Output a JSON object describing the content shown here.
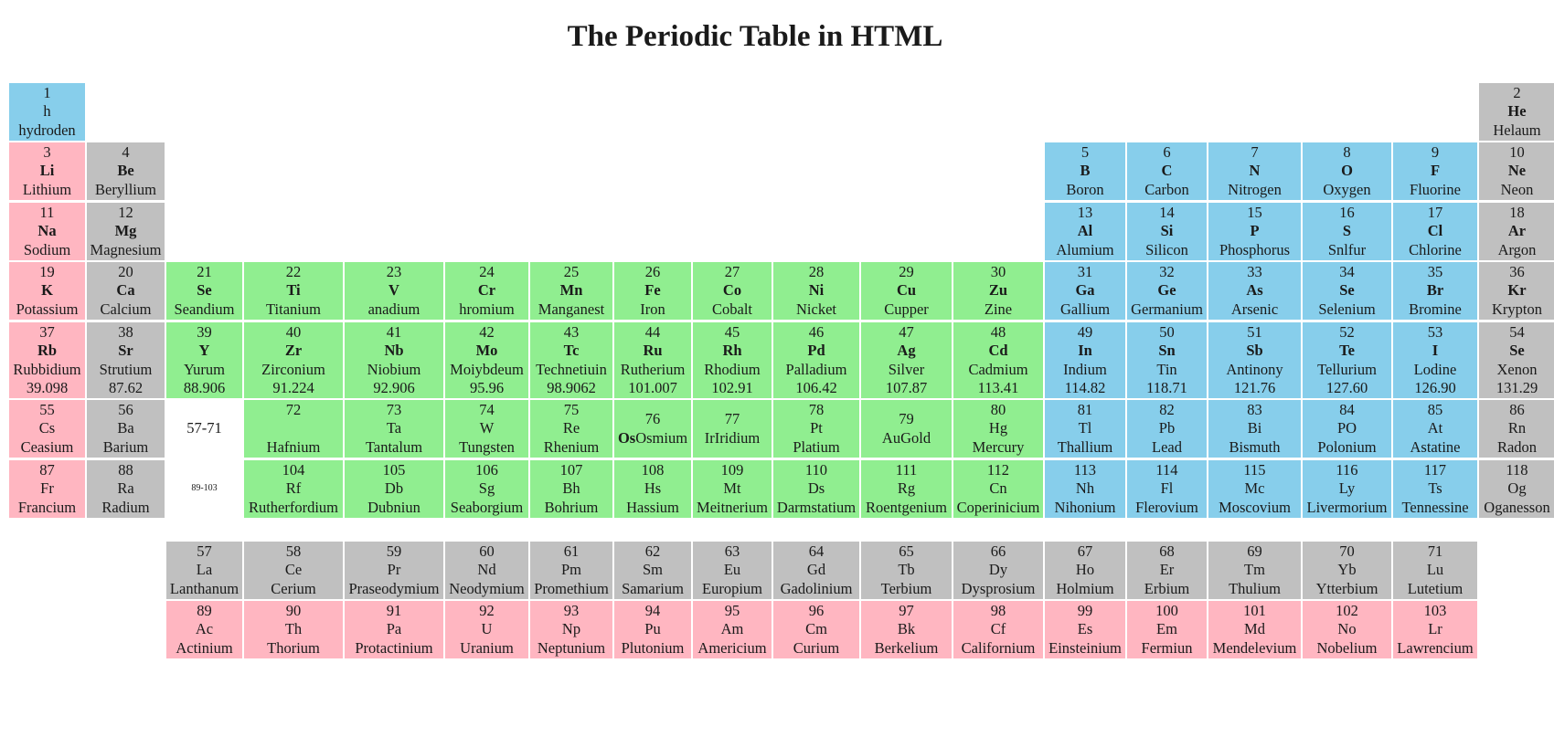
{
  "page": {
    "title": "The Periodic Table in HTML"
  },
  "colors": {
    "blue": "#87ceeb",
    "pink": "#ffb6c1",
    "gray": "#c0c0c0",
    "green": "#90ee90"
  },
  "main_table": {
    "rows": [
      [
        {
          "col": 1,
          "n": "1",
          "s": "h",
          "name": "hydroden",
          "color": "blue"
        },
        {
          "col": 18,
          "n": "2",
          "s": "He",
          "name": "Helaum",
          "color": "gray",
          "bold": true
        }
      ],
      [
        {
          "col": 1,
          "n": "3",
          "s": "Li",
          "name": "Lithium",
          "color": "pink",
          "bold": true
        },
        {
          "col": 2,
          "n": "4",
          "s": "Be",
          "name": "Beryllium",
          "color": "gray",
          "bold": true
        },
        {
          "col": 13,
          "n": "5",
          "s": "B",
          "name": "Boron",
          "color": "blue",
          "bold": true
        },
        {
          "col": 14,
          "n": "6",
          "s": "C",
          "name": "Carbon",
          "color": "blue",
          "bold": true
        },
        {
          "col": 15,
          "n": "7",
          "s": "N",
          "name": "Nitrogen",
          "color": "blue",
          "bold": true
        },
        {
          "col": 16,
          "n": "8",
          "s": "O",
          "name": "Oxygen",
          "color": "blue",
          "bold": true
        },
        {
          "col": 17,
          "n": "9",
          "s": "F",
          "name": "Fluorine",
          "color": "blue",
          "bold": true
        },
        {
          "col": 18,
          "n": "10",
          "s": "Ne",
          "name": "Neon",
          "color": "gray",
          "bold": true
        }
      ],
      [
        {
          "col": 1,
          "n": "11",
          "s": "Na",
          "name": "Sodium",
          "color": "pink",
          "bold": true
        },
        {
          "col": 2,
          "n": "12",
          "s": "Mg",
          "name": "Magnesium",
          "color": "gray",
          "bold": true
        },
        {
          "col": 13,
          "n": "13",
          "s": "Al",
          "name": "Alumium",
          "color": "blue",
          "bold": true
        },
        {
          "col": 14,
          "n": "14",
          "s": "Si",
          "name": "Silicon",
          "color": "blue",
          "bold": true
        },
        {
          "col": 15,
          "n": "15",
          "s": "P",
          "name": "Phosphorus",
          "color": "blue",
          "bold": true
        },
        {
          "col": 16,
          "n": "16",
          "s": "S",
          "name": "Snlfur",
          "color": "blue",
          "bold": true
        },
        {
          "col": 17,
          "n": "17",
          "s": "Cl",
          "name": "Chlorine",
          "color": "blue",
          "bold": true
        },
        {
          "col": 18,
          "n": "18",
          "s": "Ar",
          "name": "Argon",
          "color": "gray",
          "bold": true
        }
      ],
      [
        {
          "col": 1,
          "n": "19",
          "s": "K",
          "name": "Potassium",
          "color": "pink",
          "bold": true
        },
        {
          "col": 2,
          "n": "20",
          "s": "Ca",
          "name": "Calcium",
          "color": "gray",
          "bold": true
        },
        {
          "col": 3,
          "n": "21",
          "s": "Se",
          "name": "Seandium",
          "color": "green",
          "bold": true
        },
        {
          "col": 4,
          "n": "22",
          "s": "Ti",
          "name": "Titanium",
          "color": "green",
          "bold": true
        },
        {
          "col": 5,
          "n": "23",
          "s": "V",
          "name": "anadium",
          "color": "green",
          "bold": true
        },
        {
          "col": 6,
          "n": "24",
          "s": "Cr",
          "name": "hromium",
          "color": "green",
          "bold": true
        },
        {
          "col": 7,
          "n": "25",
          "s": "Mn",
          "name": "Manganest",
          "color": "green",
          "bold": true
        },
        {
          "col": 8,
          "n": "26",
          "s": "Fe",
          "name": "Iron",
          "color": "green",
          "bold": true
        },
        {
          "col": 9,
          "n": "27",
          "s": "Co",
          "name": "Cobalt",
          "color": "green",
          "bold": true
        },
        {
          "col": 10,
          "n": "28",
          "s": "Ni",
          "name": "Nicket",
          "color": "green",
          "bold": true
        },
        {
          "col": 11,
          "n": "29",
          "s": "Cu",
          "name": "Cupper",
          "color": "green",
          "bold": true
        },
        {
          "col": 12,
          "n": "30",
          "s": "Zu",
          "name": "Zine",
          "color": "green",
          "bold": true
        },
        {
          "col": 13,
          "n": "31",
          "s": "Ga",
          "name": "Gallium",
          "color": "blue",
          "bold": true
        },
        {
          "col": 14,
          "n": "32",
          "s": "Ge",
          "name": "Germanium",
          "color": "blue",
          "bold": true
        },
        {
          "col": 15,
          "n": "33",
          "s": "As",
          "name": "Arsenic",
          "color": "blue",
          "bold": true
        },
        {
          "col": 16,
          "n": "34",
          "s": "Se",
          "name": "Selenium",
          "color": "blue",
          "bold": true
        },
        {
          "col": 17,
          "n": "35",
          "s": "Br",
          "name": "Bromine",
          "color": "blue",
          "bold": true
        },
        {
          "col": 18,
          "n": "36",
          "s": "Kr",
          "name": "Krypton",
          "color": "gray",
          "bold": true
        }
      ],
      [
        {
          "col": 1,
          "n": "37",
          "s": "Rb",
          "name": "Rubbidium",
          "mass": "39.098",
          "color": "pink",
          "bold": true
        },
        {
          "col": 2,
          "n": "38",
          "s": "Sr",
          "name": "Strutium",
          "mass": "87.62",
          "color": "gray",
          "bold": true
        },
        {
          "col": 3,
          "n": "39",
          "s": "Y",
          "name": "Yurum",
          "mass": "88.906",
          "color": "green",
          "bold": true
        },
        {
          "col": 4,
          "n": "40",
          "s": "Zr",
          "name": "Zirconium",
          "mass": "91.224",
          "color": "green",
          "bold": true
        },
        {
          "col": 5,
          "n": "41",
          "s": "Nb",
          "name": "Niobium",
          "mass": "92.906",
          "color": "green",
          "bold": true
        },
        {
          "col": 6,
          "n": "42",
          "s": "Mo",
          "name": "Moiybdeum",
          "mass": "95.96",
          "color": "green",
          "bold": true
        },
        {
          "col": 7,
          "n": "43",
          "s": "Tc",
          "name": "Technetiuin",
          "mass": "98.9062",
          "color": "green",
          "bold": true
        },
        {
          "col": 8,
          "n": "44",
          "s": "Ru",
          "name": "Rutherium",
          "mass": "101.007",
          "color": "green",
          "bold": true
        },
        {
          "col": 9,
          "n": "45",
          "s": "Rh",
          "name": "Rhodium",
          "mass": "102.91",
          "color": "green",
          "bold": true
        },
        {
          "col": 10,
          "n": "46",
          "s": "Pd",
          "name": "Palladium",
          "mass": "106.42",
          "color": "green",
          "bold": true
        },
        {
          "col": 11,
          "n": "47",
          "s": "Ag",
          "name": "Silver",
          "mass": "107.87",
          "color": "green",
          "bold": true
        },
        {
          "col": 12,
          "n": "48",
          "s": "Cd",
          "name": "Cadmium",
          "mass": "113.41",
          "color": "green",
          "bold": true
        },
        {
          "col": 13,
          "n": "49",
          "s": "In",
          "name": "Indium",
          "mass": "114.82",
          "color": "blue",
          "bold": true
        },
        {
          "col": 14,
          "n": "50",
          "s": "Sn",
          "name": "Tin",
          "mass": "118.71",
          "color": "blue",
          "bold": true
        },
        {
          "col": 15,
          "n": "51",
          "s": "Sb",
          "name": "Antinony",
          "mass": "121.76",
          "color": "blue",
          "bold": true
        },
        {
          "col": 16,
          "n": "52",
          "s": "Te",
          "name": "Tellurium",
          "mass": "127.60",
          "color": "blue",
          "bold": true
        },
        {
          "col": 17,
          "n": "53",
          "s": "I",
          "name": "Lodine",
          "mass": "126.90",
          "color": "blue",
          "bold": true
        },
        {
          "col": 18,
          "n": "54",
          "s": "Se",
          "name": "Xenon",
          "mass": "131.29",
          "color": "gray",
          "bold": true
        }
      ],
      [
        {
          "col": 1,
          "n": "55",
          "s": "Cs",
          "name": "Ceasium",
          "color": "pink"
        },
        {
          "col": 2,
          "n": "56",
          "s": "Ba",
          "name": "Barium",
          "color": "gray"
        },
        {
          "col": 3,
          "placeholder": "57-71",
          "size": "s16"
        },
        {
          "col": 4,
          "n": "72",
          "s": "",
          "name": "Hafnium",
          "color": "green"
        },
        {
          "col": 5,
          "n": "73",
          "s": "Ta",
          "name": "Tantalum",
          "color": "green"
        },
        {
          "col": 6,
          "n": "74",
          "s": "W",
          "name": "Tungsten",
          "color": "green"
        },
        {
          "col": 7,
          "n": "75",
          "s": "Re",
          "name": "Rhenium",
          "color": "green"
        },
        {
          "col": 8,
          "n": "76",
          "s": "Os",
          "name": "Osmium",
          "color": "green",
          "inline": true
        },
        {
          "col": 9,
          "n": "77",
          "s": "Ir",
          "name": "Iridium",
          "color": "green",
          "inline": true,
          "plain": true
        },
        {
          "col": 10,
          "n": "78",
          "s": "Pt",
          "name": "Platium",
          "color": "green"
        },
        {
          "col": 11,
          "n": "79",
          "s": "Au",
          "name": "Gold",
          "color": "green",
          "inline": true,
          "plain": true
        },
        {
          "col": 12,
          "n": "80",
          "s": "Hg",
          "name": "Mercury",
          "color": "green"
        },
        {
          "col": 13,
          "n": "81",
          "s": "Tl",
          "name": "Thallium",
          "color": "blue"
        },
        {
          "col": 14,
          "n": "82",
          "s": "Pb",
          "name": "Lead",
          "color": "blue"
        },
        {
          "col": 15,
          "n": "83",
          "s": "Bi",
          "name": "Bismuth",
          "color": "blue"
        },
        {
          "col": 16,
          "n": "84",
          "s": "PO",
          "name": "Polonium",
          "color": "blue"
        },
        {
          "col": 17,
          "n": "85",
          "s": "At",
          "name": "Astatine",
          "color": "blue"
        },
        {
          "col": 18,
          "n": "86",
          "s": "Rn",
          "name": "Radon",
          "color": "gray"
        }
      ],
      [
        {
          "col": 1,
          "n": "87",
          "s": "Fr",
          "name": "Francium",
          "color": "pink"
        },
        {
          "col": 2,
          "n": "88",
          "s": "Ra",
          "name": "Radium",
          "color": "gray"
        },
        {
          "col": 3,
          "placeholder": "89-103",
          "size": "s10"
        },
        {
          "col": 4,
          "n": "104",
          "s": "Rf",
          "name": "Rutherfordium",
          "color": "green"
        },
        {
          "col": 5,
          "n": "105",
          "s": "Db",
          "name": "Dubniun",
          "color": "green"
        },
        {
          "col": 6,
          "n": "106",
          "s": "Sg",
          "name": "Seaborgium",
          "color": "green"
        },
        {
          "col": 7,
          "n": "107",
          "s": "Bh",
          "name": "Bohrium",
          "color": "green"
        },
        {
          "col": 8,
          "n": "108",
          "s": "Hs",
          "name": "Hassium",
          "color": "green"
        },
        {
          "col": 9,
          "n": "109",
          "s": "Mt",
          "name": "Meitnerium",
          "color": "green"
        },
        {
          "col": 10,
          "n": "110",
          "s": "Ds",
          "name": "Darmstatium",
          "color": "green"
        },
        {
          "col": 11,
          "n": "111",
          "s": "Rg",
          "name": "Roentgenium",
          "color": "green"
        },
        {
          "col": 12,
          "n": "112",
          "s": "Cn",
          "name": "Coperinicium",
          "color": "green"
        },
        {
          "col": 13,
          "n": "113",
          "s": "Nh",
          "name": "Nihonium",
          "color": "blue"
        },
        {
          "col": 14,
          "n": "114",
          "s": "Fl",
          "name": "Flerovium",
          "color": "blue"
        },
        {
          "col": 15,
          "n": "115",
          "s": "Mc",
          "name": "Moscovium",
          "color": "blue"
        },
        {
          "col": 16,
          "n": "116",
          "s": "Ly",
          "name": "Livermorium",
          "color": "blue"
        },
        {
          "col": 17,
          "n": "117",
          "s": "Ts",
          "name": "Tennessine",
          "color": "blue"
        },
        {
          "col": 18,
          "n": "118",
          "s": "Og",
          "name": "Oganesson",
          "color": "gray"
        }
      ]
    ]
  },
  "series_table": {
    "lanthanides": [
      {
        "n": "57",
        "s": "La",
        "name": "Lanthanum",
        "color": "gray"
      },
      {
        "n": "58",
        "s": "Ce",
        "name": "Cerium",
        "color": "gray"
      },
      {
        "n": "59",
        "s": "Pr",
        "name": "Praseodymium",
        "color": "gray"
      },
      {
        "n": "60",
        "s": "Nd",
        "name": "Neodymium",
        "color": "gray"
      },
      {
        "n": "61",
        "s": "Pm",
        "name": "Promethium",
        "color": "gray"
      },
      {
        "n": "62",
        "s": "Sm",
        "name": "Samarium",
        "color": "gray"
      },
      {
        "n": "63",
        "s": "Eu",
        "name": "Europium",
        "color": "gray"
      },
      {
        "n": "64",
        "s": "Gd",
        "name": "Gadolinium",
        "color": "gray"
      },
      {
        "n": "65",
        "s": "Tb",
        "name": "Terbium",
        "color": "gray"
      },
      {
        "n": "66",
        "s": "Dy",
        "name": "Dysprosium",
        "color": "gray"
      },
      {
        "n": "67",
        "s": "Ho",
        "name": "Holmium",
        "color": "gray"
      },
      {
        "n": "68",
        "s": "Er",
        "name": "Erbium",
        "color": "gray"
      },
      {
        "n": "69",
        "s": "Tm",
        "name": "Thulium",
        "color": "gray"
      },
      {
        "n": "70",
        "s": "Yb",
        "name": "Ytterbium",
        "color": "gray"
      },
      {
        "n": "71",
        "s": "Lu",
        "name": "Lutetium",
        "color": "gray"
      }
    ],
    "actinides": [
      {
        "n": "89",
        "s": "Ac",
        "name": "Actinium",
        "color": "pink"
      },
      {
        "n": "90",
        "s": "Th",
        "name": "Thorium",
        "color": "pink"
      },
      {
        "n": "91",
        "s": "Pa",
        "name": "Protactinium",
        "color": "pink"
      },
      {
        "n": "92",
        "s": "U",
        "name": "Uranium",
        "color": "pink"
      },
      {
        "n": "93",
        "s": "Np",
        "name": "Neptunium",
        "color": "pink"
      },
      {
        "n": "94",
        "s": "Pu",
        "name": "Plutonium",
        "color": "pink"
      },
      {
        "n": "95",
        "s": "Am",
        "name": "Americium",
        "color": "pink"
      },
      {
        "n": "96",
        "s": "Cm",
        "name": "Curium",
        "color": "pink"
      },
      {
        "n": "97",
        "s": "Bk",
        "name": "Berkelium",
        "color": "pink"
      },
      {
        "n": "98",
        "s": "Cf",
        "name": "Californium",
        "color": "pink"
      },
      {
        "n": "99",
        "s": "Es",
        "name": "Einsteinium",
        "color": "pink"
      },
      {
        "n": "100",
        "s": "Em",
        "name": "Fermiun",
        "color": "pink"
      },
      {
        "n": "101",
        "s": "Md",
        "name": "Mendelevium",
        "color": "pink"
      },
      {
        "n": "102",
        "s": "No",
        "name": "Nobelium",
        "color": "pink"
      },
      {
        "n": "103",
        "s": "Lr",
        "name": "Lawrencium",
        "color": "pink"
      }
    ]
  }
}
